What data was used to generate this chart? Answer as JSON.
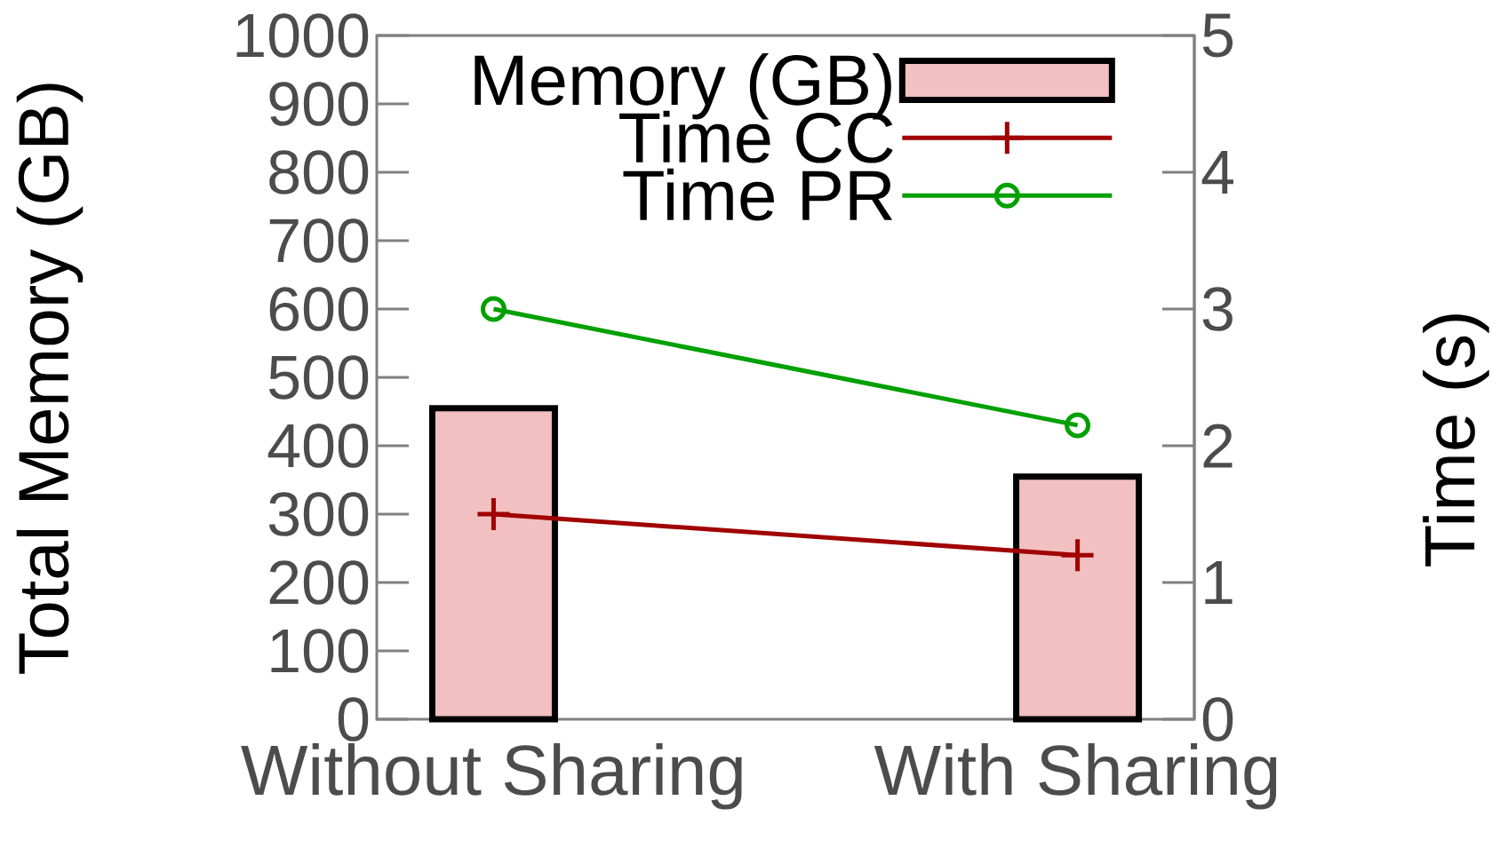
{
  "chart_data": {
    "type": "bar",
    "categories": [
      "Without Sharing",
      "With Sharing"
    ],
    "series": [
      {
        "name": "Memory (GB)",
        "color": "#f2c0c0",
        "values": [
          455,
          355
        ]
      },
      {
        "name": "Time CC",
        "type": "line",
        "axis": "y2",
        "color": "#a00000",
        "marker": "cross",
        "values": [
          1.5,
          1.2
        ]
      },
      {
        "name": "Time PR",
        "type": "line",
        "axis": "y2",
        "color": "#00a000",
        "marker": "circle",
        "values": [
          3.0,
          2.15
        ]
      }
    ],
    "ylabel": "Total Memory (GB)",
    "y2label": "Time (s)",
    "ylim": [
      0,
      1000
    ],
    "yticks": [
      0,
      100,
      200,
      300,
      400,
      500,
      600,
      700,
      800,
      900,
      1000
    ],
    "y2lim": [
      0,
      5
    ],
    "y2ticks": [
      0,
      1,
      2,
      3,
      4,
      5
    ],
    "legend": "top right"
  }
}
